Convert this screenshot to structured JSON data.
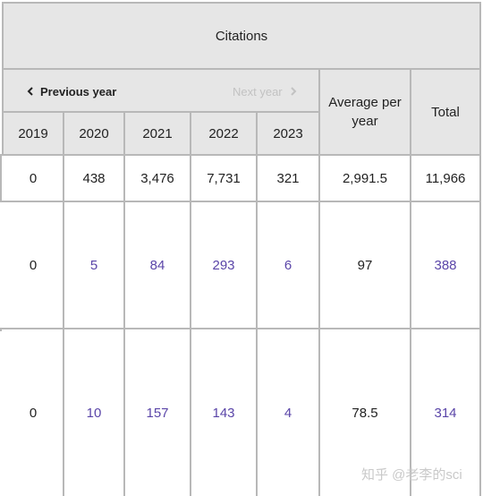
{
  "header": {
    "citations_label": "Citations",
    "prev_label": "Previous year",
    "next_label": "Next year",
    "years": [
      "2019",
      "2020",
      "2021",
      "2022",
      "2023"
    ],
    "average_label": "Average per year",
    "total_label": "Total"
  },
  "rows": [
    {
      "y2019": "0",
      "y2020": "438",
      "y2021": "3,476",
      "y2022": "7,731",
      "y2023": "321",
      "average": "2,991.5",
      "total": "11,966"
    },
    {
      "y2019": "0",
      "y2020": "5",
      "y2021": "84",
      "y2022": "293",
      "y2023": "6",
      "average": "97",
      "total": "388"
    },
    {
      "y2019": "0",
      "y2020": "10",
      "y2021": "157",
      "y2022": "143",
      "y2023": "4",
      "average": "78.5",
      "total": "314"
    }
  ],
  "watermark": "知乎 @老李的sci",
  "colors": {
    "header_bg": "#e6e6e6",
    "link": "#5a45a8",
    "grid": "#b8b8b8",
    "disabled": "#c2c2c2"
  }
}
